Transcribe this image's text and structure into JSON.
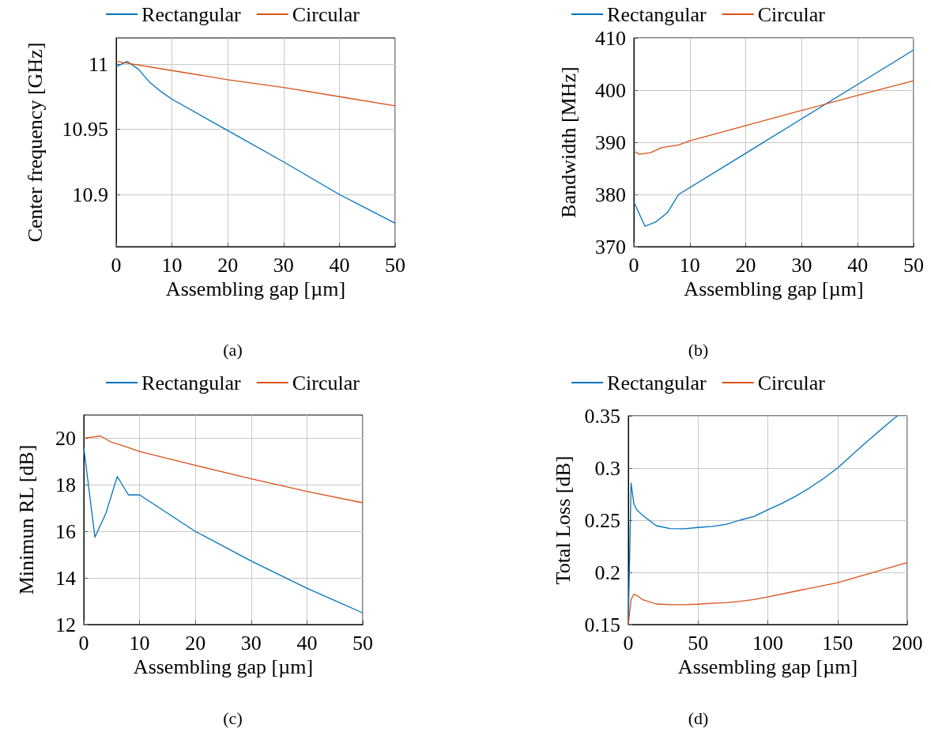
{
  "chart_data": [
    {
      "type": "line",
      "xlabel": "Assembling gap [µm]",
      "ylabel": "Center frequency [GHz]",
      "annotations": [
        "(a)"
      ],
      "legend": "top",
      "grid": true,
      "marker": "none",
      "line_style": "solid",
      "xlim": [
        0,
        50
      ],
      "xticks": [
        0,
        10,
        20,
        30,
        40,
        50
      ],
      "ylim": [
        10.86,
        11.02
      ],
      "yticks": [
        10.9,
        10.95,
        11
      ],
      "series": [
        {
          "name": "Rectangular",
          "color": "#0072bd",
          "x": [
            0,
            2,
            4,
            6,
            8,
            10,
            20,
            30,
            40,
            50
          ],
          "values": [
            10.998,
            11.002,
            10.996,
            10.986,
            10.979,
            10.973,
            10.949,
            10.925,
            10.9,
            10.878
          ]
        },
        {
          "name": "Circular",
          "color": "#d95319",
          "x": [
            0,
            10,
            20,
            30,
            40,
            50
          ],
          "values": [
            11.002,
            10.995,
            10.988,
            10.982,
            10.975,
            10.968
          ]
        }
      ]
    },
    {
      "type": "line",
      "xlabel": "Assembling gap [µm]",
      "ylabel": "Bandwidth [MHz]",
      "annotations": [
        "(b)"
      ],
      "legend": "top",
      "grid": true,
      "marker": "none",
      "line_style": "solid",
      "xlim": [
        0,
        50
      ],
      "xticks": [
        0,
        10,
        20,
        30,
        40,
        50
      ],
      "ylim": [
        370,
        410
      ],
      "yticks": [
        370,
        380,
        390,
        400,
        410
      ],
      "series": [
        {
          "name": "Rectangular",
          "color": "#0072bd",
          "x": [
            0,
            2,
            4,
            6,
            8,
            20,
            30,
            40,
            50
          ],
          "values": [
            378.6,
            373.9,
            374.8,
            376.5,
            380,
            387.9,
            394.5,
            401.1,
            407.7
          ]
        },
        {
          "name": "Circular",
          "color": "#d95319",
          "x": [
            0,
            1,
            3,
            5,
            8,
            10,
            20,
            30,
            40,
            50
          ],
          "values": [
            388.3,
            387.7,
            388,
            389,
            389.5,
            390.3,
            393.2,
            396.1,
            399,
            401.8
          ]
        }
      ]
    },
    {
      "type": "line",
      "xlabel": "Assembling gap [µm]",
      "ylabel": "Minimun RL [dB]",
      "annotations": [
        "(c)"
      ],
      "legend": "top",
      "grid": true,
      "marker": "none",
      "line_style": "solid",
      "xlim": [
        0,
        50
      ],
      "xticks": [
        0,
        10,
        20,
        30,
        40,
        50
      ],
      "ylim": [
        12,
        21
      ],
      "yticks": [
        12,
        14,
        16,
        18,
        20
      ],
      "series": [
        {
          "name": "Rectangular",
          "color": "#0072bd",
          "x": [
            0,
            2,
            4,
            6,
            8,
            10,
            20,
            30,
            40,
            50
          ],
          "values": [
            19.6,
            15.75,
            16.8,
            18.36,
            17.57,
            17.57,
            16,
            14.73,
            13.56,
            12.5
          ]
        },
        {
          "name": "Circular",
          "color": "#d95319",
          "x": [
            0,
            3,
            5,
            8,
            10,
            20,
            30,
            40,
            50
          ],
          "values": [
            20,
            20.1,
            19.83,
            19.6,
            19.43,
            18.84,
            18.26,
            17.72,
            17.23
          ]
        }
      ]
    },
    {
      "type": "line",
      "xlabel": "Assembling gap [µm]",
      "ylabel": "Total Loss [dB]",
      "annotations": [
        "(d)"
      ],
      "legend": "top",
      "grid": true,
      "marker": "none",
      "line_style": "solid",
      "xlim": [
        0,
        200
      ],
      "xticks": [
        0,
        50,
        100,
        150,
        200
      ],
      "ylim": [
        0.15,
        0.35
      ],
      "yticks": [
        0.15,
        0.2,
        0.25,
        0.3,
        0.35
      ],
      "series": [
        {
          "name": "Rectangular",
          "color": "#0072bd",
          "x": [
            0,
            2,
            4,
            6,
            10,
            20,
            30,
            40,
            50,
            60,
            70,
            80,
            90,
            100,
            110,
            120,
            130,
            140,
            150,
            170,
            190,
            193
          ],
          "values": [
            0.15,
            0.2856,
            0.2655,
            0.26,
            0.255,
            0.2447,
            0.242,
            0.2417,
            0.243,
            0.244,
            0.246,
            0.25,
            0.2535,
            0.26,
            0.266,
            0.273,
            0.281,
            0.29,
            0.3,
            0.324,
            0.347,
            0.35
          ]
        },
        {
          "name": "Circular",
          "color": "#d95319",
          "x": [
            0,
            2,
            4,
            6,
            10,
            20,
            30,
            40,
            50,
            60,
            70,
            80,
            90,
            100,
            120,
            150,
            200
          ],
          "values": [
            0.15,
            0.174,
            0.179,
            0.178,
            0.174,
            0.1697,
            0.169,
            0.169,
            0.1695,
            0.1703,
            0.171,
            0.1722,
            0.174,
            0.1765,
            0.182,
            0.19,
            0.2093
          ]
        }
      ]
    }
  ]
}
